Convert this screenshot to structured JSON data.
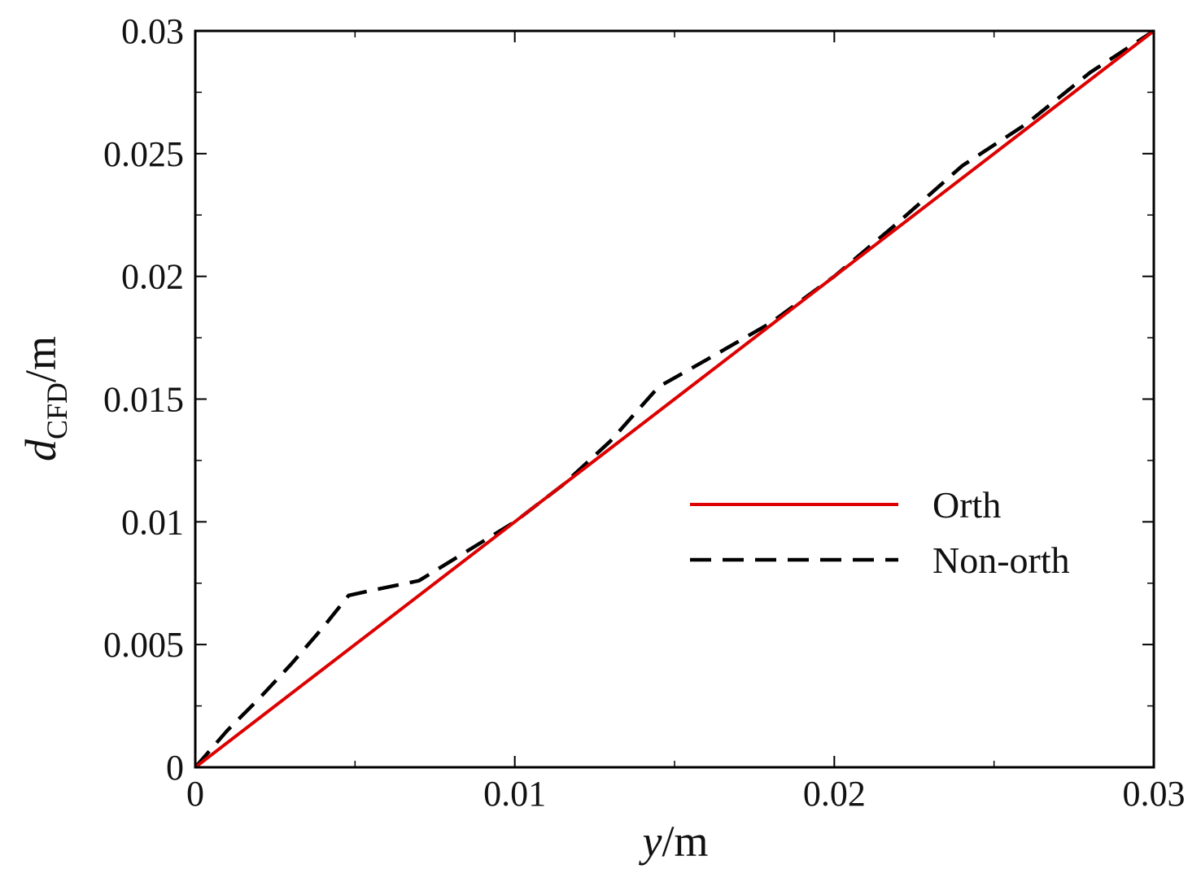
{
  "chart_data": {
    "type": "line",
    "xlabel": {
      "italic": "y",
      "rest": "/m"
    },
    "ylabel": {
      "italic": "d",
      "subscript": "CFD",
      "rest": "/m"
    },
    "xlim": [
      0,
      0.03
    ],
    "ylim": [
      0,
      0.03
    ],
    "x_ticks": [
      0,
      0.01,
      0.02,
      0.03
    ],
    "x_tick_labels": [
      "0",
      "0.01",
      "0.02",
      "0.03"
    ],
    "y_ticks": [
      0,
      0.005,
      0.01,
      0.015,
      0.02,
      0.025,
      0.03
    ],
    "y_tick_labels": [
      "0",
      "0.005",
      "0.01",
      "0.015",
      "0.02",
      "0.025",
      "0.03"
    ],
    "grid": false,
    "legend_position": "center-right",
    "series": [
      {
        "name": "Orth",
        "color": "#dd0000",
        "dash": "solid",
        "points": [
          [
            0,
            0
          ],
          [
            0.005,
            0.005
          ],
          [
            0.01,
            0.01
          ],
          [
            0.015,
            0.015
          ],
          [
            0.02,
            0.02
          ],
          [
            0.025,
            0.025
          ],
          [
            0.03,
            0.03
          ]
        ]
      },
      {
        "name": "Non-orth",
        "color": "#000000",
        "dash": "dashed",
        "points": [
          [
            0,
            0
          ],
          [
            0.001,
            0.0015
          ],
          [
            0.002,
            0.0028
          ],
          [
            0.003,
            0.0042
          ],
          [
            0.004,
            0.0057
          ],
          [
            0.0048,
            0.007
          ],
          [
            0.0055,
            0.0072
          ],
          [
            0.007,
            0.0076
          ],
          [
            0.0085,
            0.0088
          ],
          [
            0.01,
            0.01
          ],
          [
            0.0115,
            0.0115
          ],
          [
            0.013,
            0.0133
          ],
          [
            0.0145,
            0.0155
          ],
          [
            0.016,
            0.0166
          ],
          [
            0.018,
            0.0181
          ],
          [
            0.02,
            0.02
          ],
          [
            0.022,
            0.0222
          ],
          [
            0.024,
            0.0245
          ],
          [
            0.026,
            0.0262
          ],
          [
            0.028,
            0.0283
          ],
          [
            0.03,
            0.03
          ]
        ]
      }
    ]
  }
}
